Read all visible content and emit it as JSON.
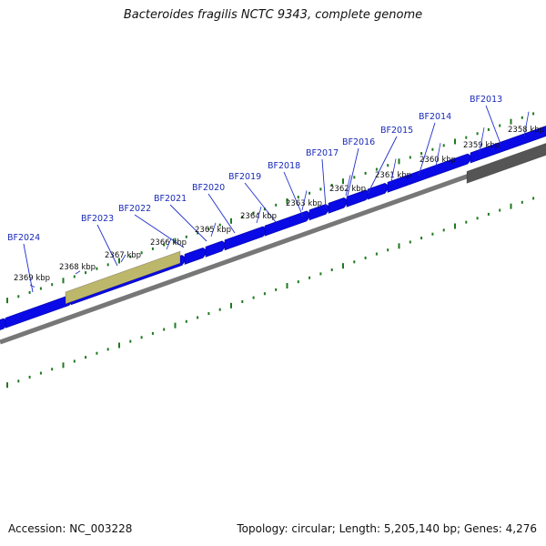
{
  "title": "Bacteroides fragilis NCTC 9343, complete genome",
  "footer": {
    "accession": "Accession: NC_003228",
    "topology": "Topology: circular; Length: 5,205,140 bp; Genes: 4,276"
  },
  "scale_labels": [
    "2358 kbp",
    "2359 kbp",
    "2360 kbp",
    "2361 kbp",
    "2362 kbp",
    "2363 kbp",
    "2364 kbp",
    "2365 kbp",
    "2366 kbp",
    "2367 kbp",
    "2368 kbp",
    "2369 kbp"
  ],
  "gene_labels": [
    "BF2013",
    "BF2014",
    "BF2015",
    "BF2016",
    "BF2017",
    "BF2018",
    "BF2019",
    "BF2020",
    "BF2021",
    "BF2022",
    "BF2023",
    "BF2024"
  ],
  "colors": {
    "cds": "#0a0ae6",
    "tick": "#1f7a1f",
    "backbone": "#777777",
    "feature_olive": "#bdb76b",
    "feature_dark": "#555555",
    "label_text": "#1a2ab8",
    "leader": "#1f2dcc"
  }
}
